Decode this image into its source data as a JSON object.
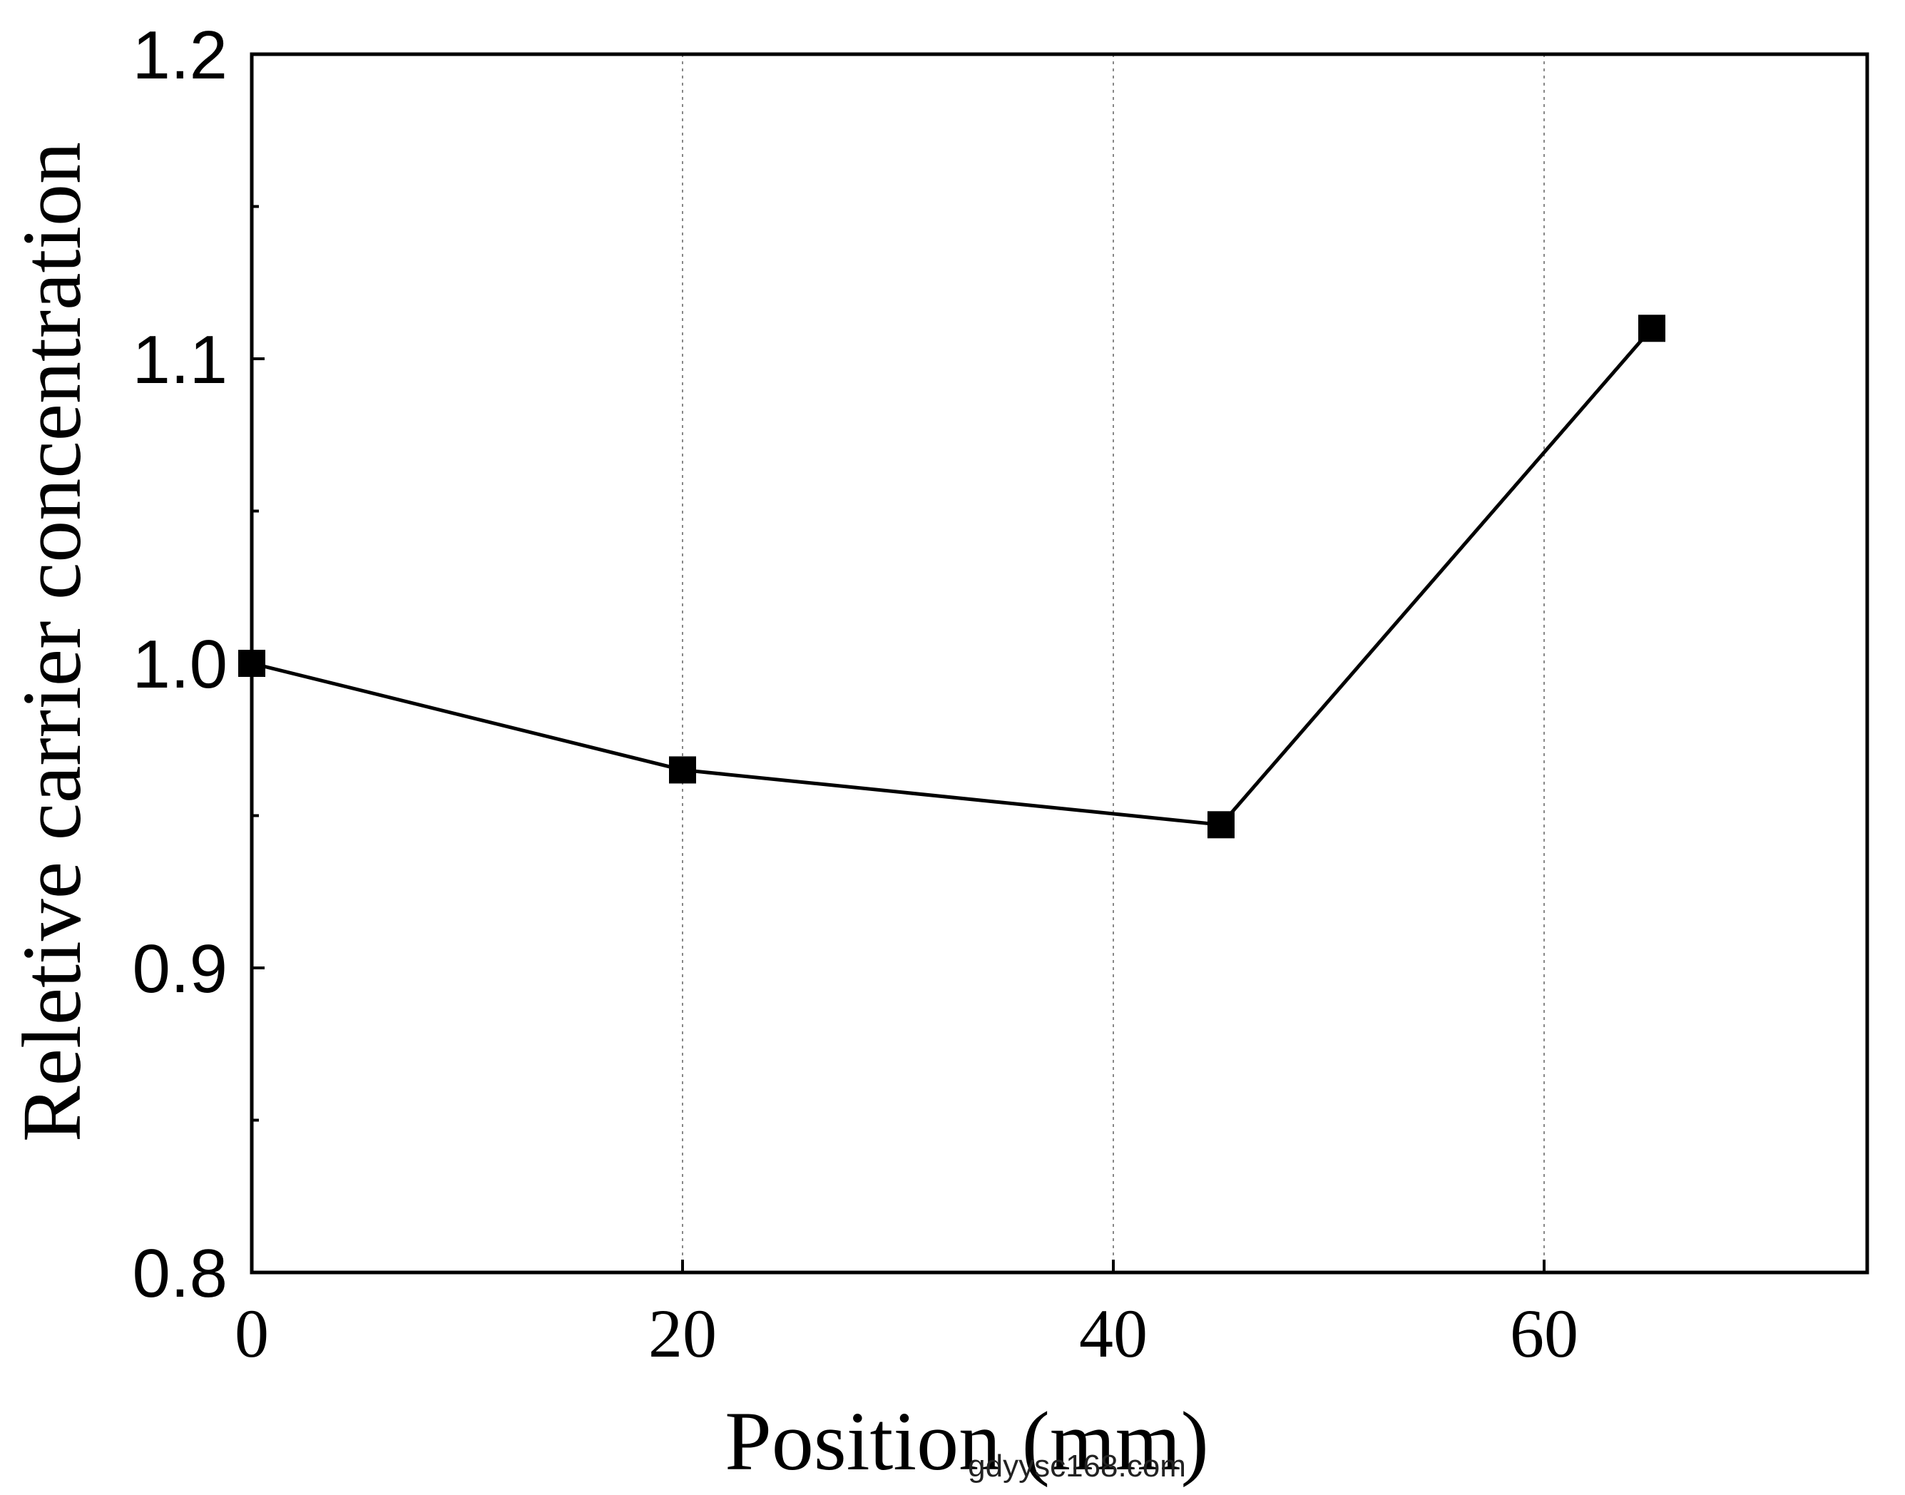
{
  "chart_data": {
    "type": "line",
    "title": "",
    "xlabel": "Position (mm)",
    "ylabel": "Reletive carrier concentration",
    "xlim": [
      0,
      75
    ],
    "ylim": [
      0.8,
      1.2
    ],
    "xticks": [
      0,
      20,
      40,
      60
    ],
    "xtick_labels": [
      "0",
      "20",
      "40",
      "60"
    ],
    "yticks": [
      0.8,
      0.9,
      1.0,
      1.1,
      1.2
    ],
    "ytick_labels": [
      "0.8",
      "0.9",
      "1.0",
      "1.1",
      "1.2"
    ],
    "y_minor_ticks": [
      0.85,
      0.95,
      1.05,
      1.15
    ],
    "grid": "vertical dotted lines at x ticks",
    "marker": "square",
    "line_color": "#000000",
    "x": [
      0,
      20,
      45,
      65
    ],
    "y": [
      1.0,
      0.965,
      0.947,
      1.11
    ]
  },
  "watermark": "gdyysc168.com"
}
